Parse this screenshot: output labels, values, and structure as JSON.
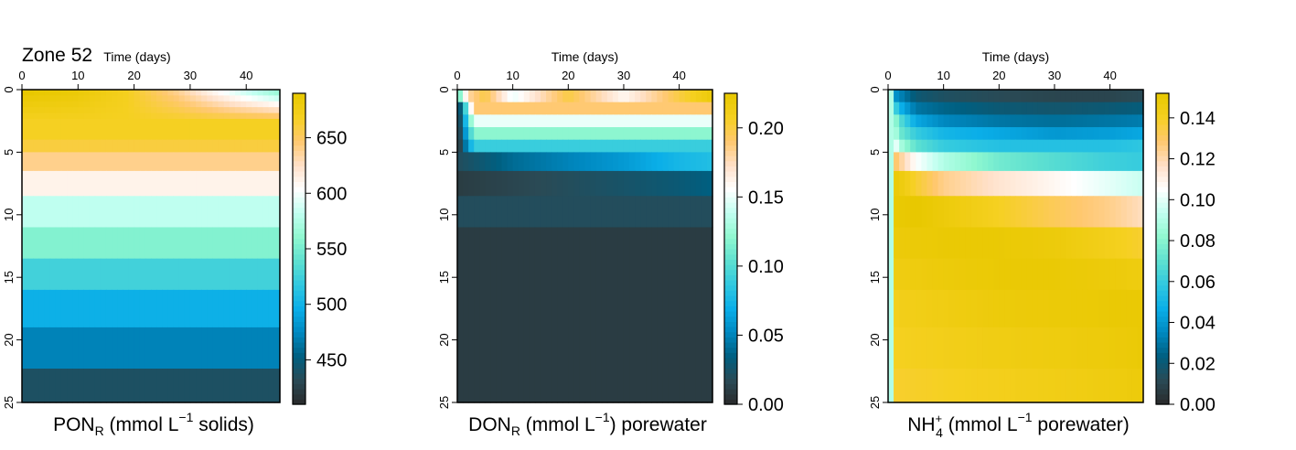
{
  "figure_title": "Zone 52",
  "colors": {
    "palette": [
      "#2a2a2a",
      "#2a4a55",
      "#005f80",
      "#0088c0",
      "#0aaee8",
      "#30c8e0",
      "#5ee0d0",
      "#90f8d0",
      "#c0fff0",
      "#ffffff",
      "#ffe0c8",
      "#ffc870",
      "#f5d020",
      "#e8c800"
    ]
  },
  "chart_data": [
    {
      "type": "heatmap",
      "title": "",
      "xlabel": "Time (days)",
      "ylabel": "",
      "xticks": [
        0,
        10,
        20,
        30,
        40
      ],
      "yticks": [
        0,
        5,
        10,
        15,
        20,
        25
      ],
      "xlim": [
        0,
        46
      ],
      "ylim": [
        25,
        0
      ],
      "caption": {
        "pre": "PON",
        "sub": "R",
        "mid": " (mmol L",
        "sup": "−1",
        "post": " solids)"
      },
      "colorbar": {
        "min": 410,
        "max": 690,
        "ticks": [
          450,
          500,
          550,
          600,
          650
        ]
      },
      "layer_depth_edges": [
        0,
        2.8,
        4,
        5,
        6.5,
        8.5,
        11,
        13.5,
        16,
        19,
        22.3,
        25
      ],
      "layer_values": [
        null,
        668,
        660,
        640,
        612,
        582,
        555,
        526,
        498,
        472,
        438,
        418
      ],
      "surface_values": [
        690,
        685,
        670,
        640,
        600,
        565,
        540,
        520,
        510,
        505
      ]
    },
    {
      "type": "heatmap",
      "title": "",
      "xlabel": "Time (days)",
      "ylabel": "",
      "xticks": [
        0,
        10,
        20,
        30,
        40
      ],
      "yticks": [
        0,
        5,
        10,
        15,
        20,
        25
      ],
      "xlim": [
        0,
        46
      ],
      "ylim": [
        25,
        0
      ],
      "caption": {
        "pre": "DON",
        "sub": "R",
        "mid": " (mmol L",
        "sup": "−1",
        "post": ") porewater"
      },
      "colorbar": {
        "min": 0,
        "max": 0.225,
        "ticks": [
          0.0,
          0.05,
          0.1,
          0.15,
          0.2
        ]
      },
      "layer_depth_edges": [
        0,
        1,
        2,
        3,
        4,
        5,
        6.5,
        8.5,
        11,
        25
      ],
      "layer_values": [
        0.21,
        0.19,
        0.15,
        0.12,
        0.09,
        0.075,
        0.045,
        0.02,
        0.01
      ],
      "series": [
        {
          "depth": 0.5,
          "t": [
            0,
            2,
            5,
            10,
            20,
            30,
            40,
            46
          ],
          "v": [
            0.1,
            0.18,
            0.2,
            0.15,
            0.2,
            0.16,
            0.2,
            0.22
          ]
        },
        {
          "depth": 5.8,
          "t": [
            0,
            5,
            10,
            20,
            30,
            40,
            46
          ],
          "v": [
            0.02,
            0.03,
            0.04,
            0.05,
            0.06,
            0.075,
            0.08
          ]
        },
        {
          "depth": 7.5,
          "t": [
            0,
            10,
            20,
            30,
            40,
            46
          ],
          "v": [
            0.01,
            0.015,
            0.02,
            0.025,
            0.03,
            0.035
          ]
        }
      ]
    },
    {
      "type": "heatmap",
      "title": "",
      "xlabel": "Time (days)",
      "ylabel": "",
      "xticks": [
        0,
        10,
        20,
        30,
        40
      ],
      "yticks": [
        0,
        5,
        10,
        15,
        20,
        25
      ],
      "xlim": [
        0,
        46
      ],
      "ylim": [
        25,
        0
      ],
      "caption": {
        "pre": "NH",
        "sub": "4",
        "sup0": "+",
        "mid": " (mmol L",
        "sup": "−1",
        "post": " porewater)"
      },
      "colorbar": {
        "min": 0,
        "max": 0.152,
        "ticks": [
          0.0,
          0.02,
          0.04,
          0.06,
          0.08,
          0.1,
          0.12,
          0.14
        ]
      },
      "layer_depth_edges": [
        0,
        1,
        2,
        3,
        4,
        5,
        6.5,
        8.5,
        11,
        13.5,
        16,
        19,
        22.3,
        25
      ],
      "series": [
        {
          "depth": 0.5,
          "t": [
            0,
            1,
            5,
            10,
            20,
            30,
            40,
            46
          ],
          "v": [
            0.06,
            0.04,
            0.02,
            0.015,
            0.012,
            0.01,
            0.01,
            0.012
          ]
        },
        {
          "depth": 1.5,
          "t": [
            0,
            2,
            5,
            10,
            20,
            30,
            40,
            46
          ],
          "v": [
            0.09,
            0.05,
            0.03,
            0.025,
            0.02,
            0.018,
            0.02,
            0.022
          ]
        },
        {
          "depth": 2.5,
          "t": [
            0,
            2,
            5,
            10,
            20,
            30,
            40,
            46
          ],
          "v": [
            0.11,
            0.07,
            0.045,
            0.035,
            0.03,
            0.028,
            0.03,
            0.032
          ]
        },
        {
          "depth": 3.5,
          "t": [
            0,
            2,
            5,
            10,
            20,
            30,
            40,
            46
          ],
          "v": [
            0.12,
            0.075,
            0.06,
            0.05,
            0.045,
            0.04,
            0.042,
            0.045
          ]
        },
        {
          "depth": 4.5,
          "t": [
            0,
            2,
            5,
            10,
            20,
            30,
            40,
            46
          ],
          "v": [
            0.13,
            0.09,
            0.07,
            0.06,
            0.055,
            0.055,
            0.055,
            0.058
          ]
        },
        {
          "depth": 5.8,
          "t": [
            0,
            2,
            5,
            10,
            20,
            30,
            40,
            46
          ],
          "v": [
            0.14,
            0.125,
            0.105,
            0.09,
            0.075,
            0.068,
            0.062,
            0.06
          ]
        },
        {
          "depth": 7.5,
          "t": [
            0,
            2,
            5,
            10,
            20,
            30,
            40,
            46
          ],
          "v": [
            0.15,
            0.148,
            0.138,
            0.125,
            0.115,
            0.108,
            0.1,
            0.095
          ]
        },
        {
          "depth": 9.8,
          "t": [
            0,
            5,
            10,
            20,
            30,
            40,
            46
          ],
          "v": [
            0.15,
            0.152,
            0.148,
            0.14,
            0.132,
            0.125,
            0.118
          ]
        },
        {
          "depth": 12.3,
          "t": [
            0,
            10,
            20,
            30,
            40,
            46
          ],
          "v": [
            0.148,
            0.15,
            0.15,
            0.148,
            0.142,
            0.138
          ]
        },
        {
          "depth": 14.8,
          "t": [
            0,
            10,
            20,
            30,
            40,
            46
          ],
          "v": [
            0.145,
            0.148,
            0.15,
            0.15,
            0.148,
            0.146
          ]
        },
        {
          "depth": 17.5,
          "t": [
            0,
            20,
            40,
            46
          ],
          "v": [
            0.142,
            0.148,
            0.15,
            0.15
          ]
        },
        {
          "depth": 20.6,
          "t": [
            0,
            20,
            40,
            46
          ],
          "v": [
            0.14,
            0.145,
            0.148,
            0.15
          ]
        },
        {
          "depth": 23.7,
          "t": [
            0,
            20,
            40,
            46
          ],
          "v": [
            0.138,
            0.142,
            0.146,
            0.148
          ]
        }
      ],
      "left_edge_value": 0.09
    }
  ]
}
